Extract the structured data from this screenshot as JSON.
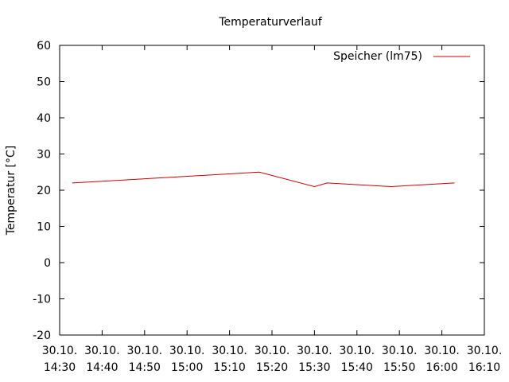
{
  "chart_data": {
    "type": "line",
    "title": "Temperaturverlauf",
    "xlabel": "",
    "ylabel": "Temperatur [°C]",
    "ylim": [
      -20,
      60
    ],
    "yticks": [
      -20,
      -10,
      0,
      10,
      20,
      30,
      40,
      50,
      60
    ],
    "xlim": [
      "14:30",
      "16:10"
    ],
    "xticks": [
      {
        "date": "30.10.",
        "time": "14:30"
      },
      {
        "date": "30.10.",
        "time": "14:40"
      },
      {
        "date": "30.10.",
        "time": "14:50"
      },
      {
        "date": "30.10.",
        "time": "15:00"
      },
      {
        "date": "30.10.",
        "time": "15:10"
      },
      {
        "date": "30.10.",
        "time": "15:20"
      },
      {
        "date": "30.10.",
        "time": "15:30"
      },
      {
        "date": "30.10.",
        "time": "15:40"
      },
      {
        "date": "30.10.",
        "time": "15:50"
      },
      {
        "date": "30.10.",
        "time": "16:00"
      },
      {
        "date": "30.10.",
        "time": "16:10"
      }
    ],
    "grid": false,
    "legend": "top-right",
    "series": [
      {
        "name": "Speicher (lm75)",
        "color": "#cc0000",
        "x": [
          "14:33",
          "15:17",
          "15:30",
          "15:33",
          "15:48",
          "16:03"
        ],
        "y": [
          22,
          25,
          21,
          22,
          21,
          22
        ]
      }
    ]
  }
}
